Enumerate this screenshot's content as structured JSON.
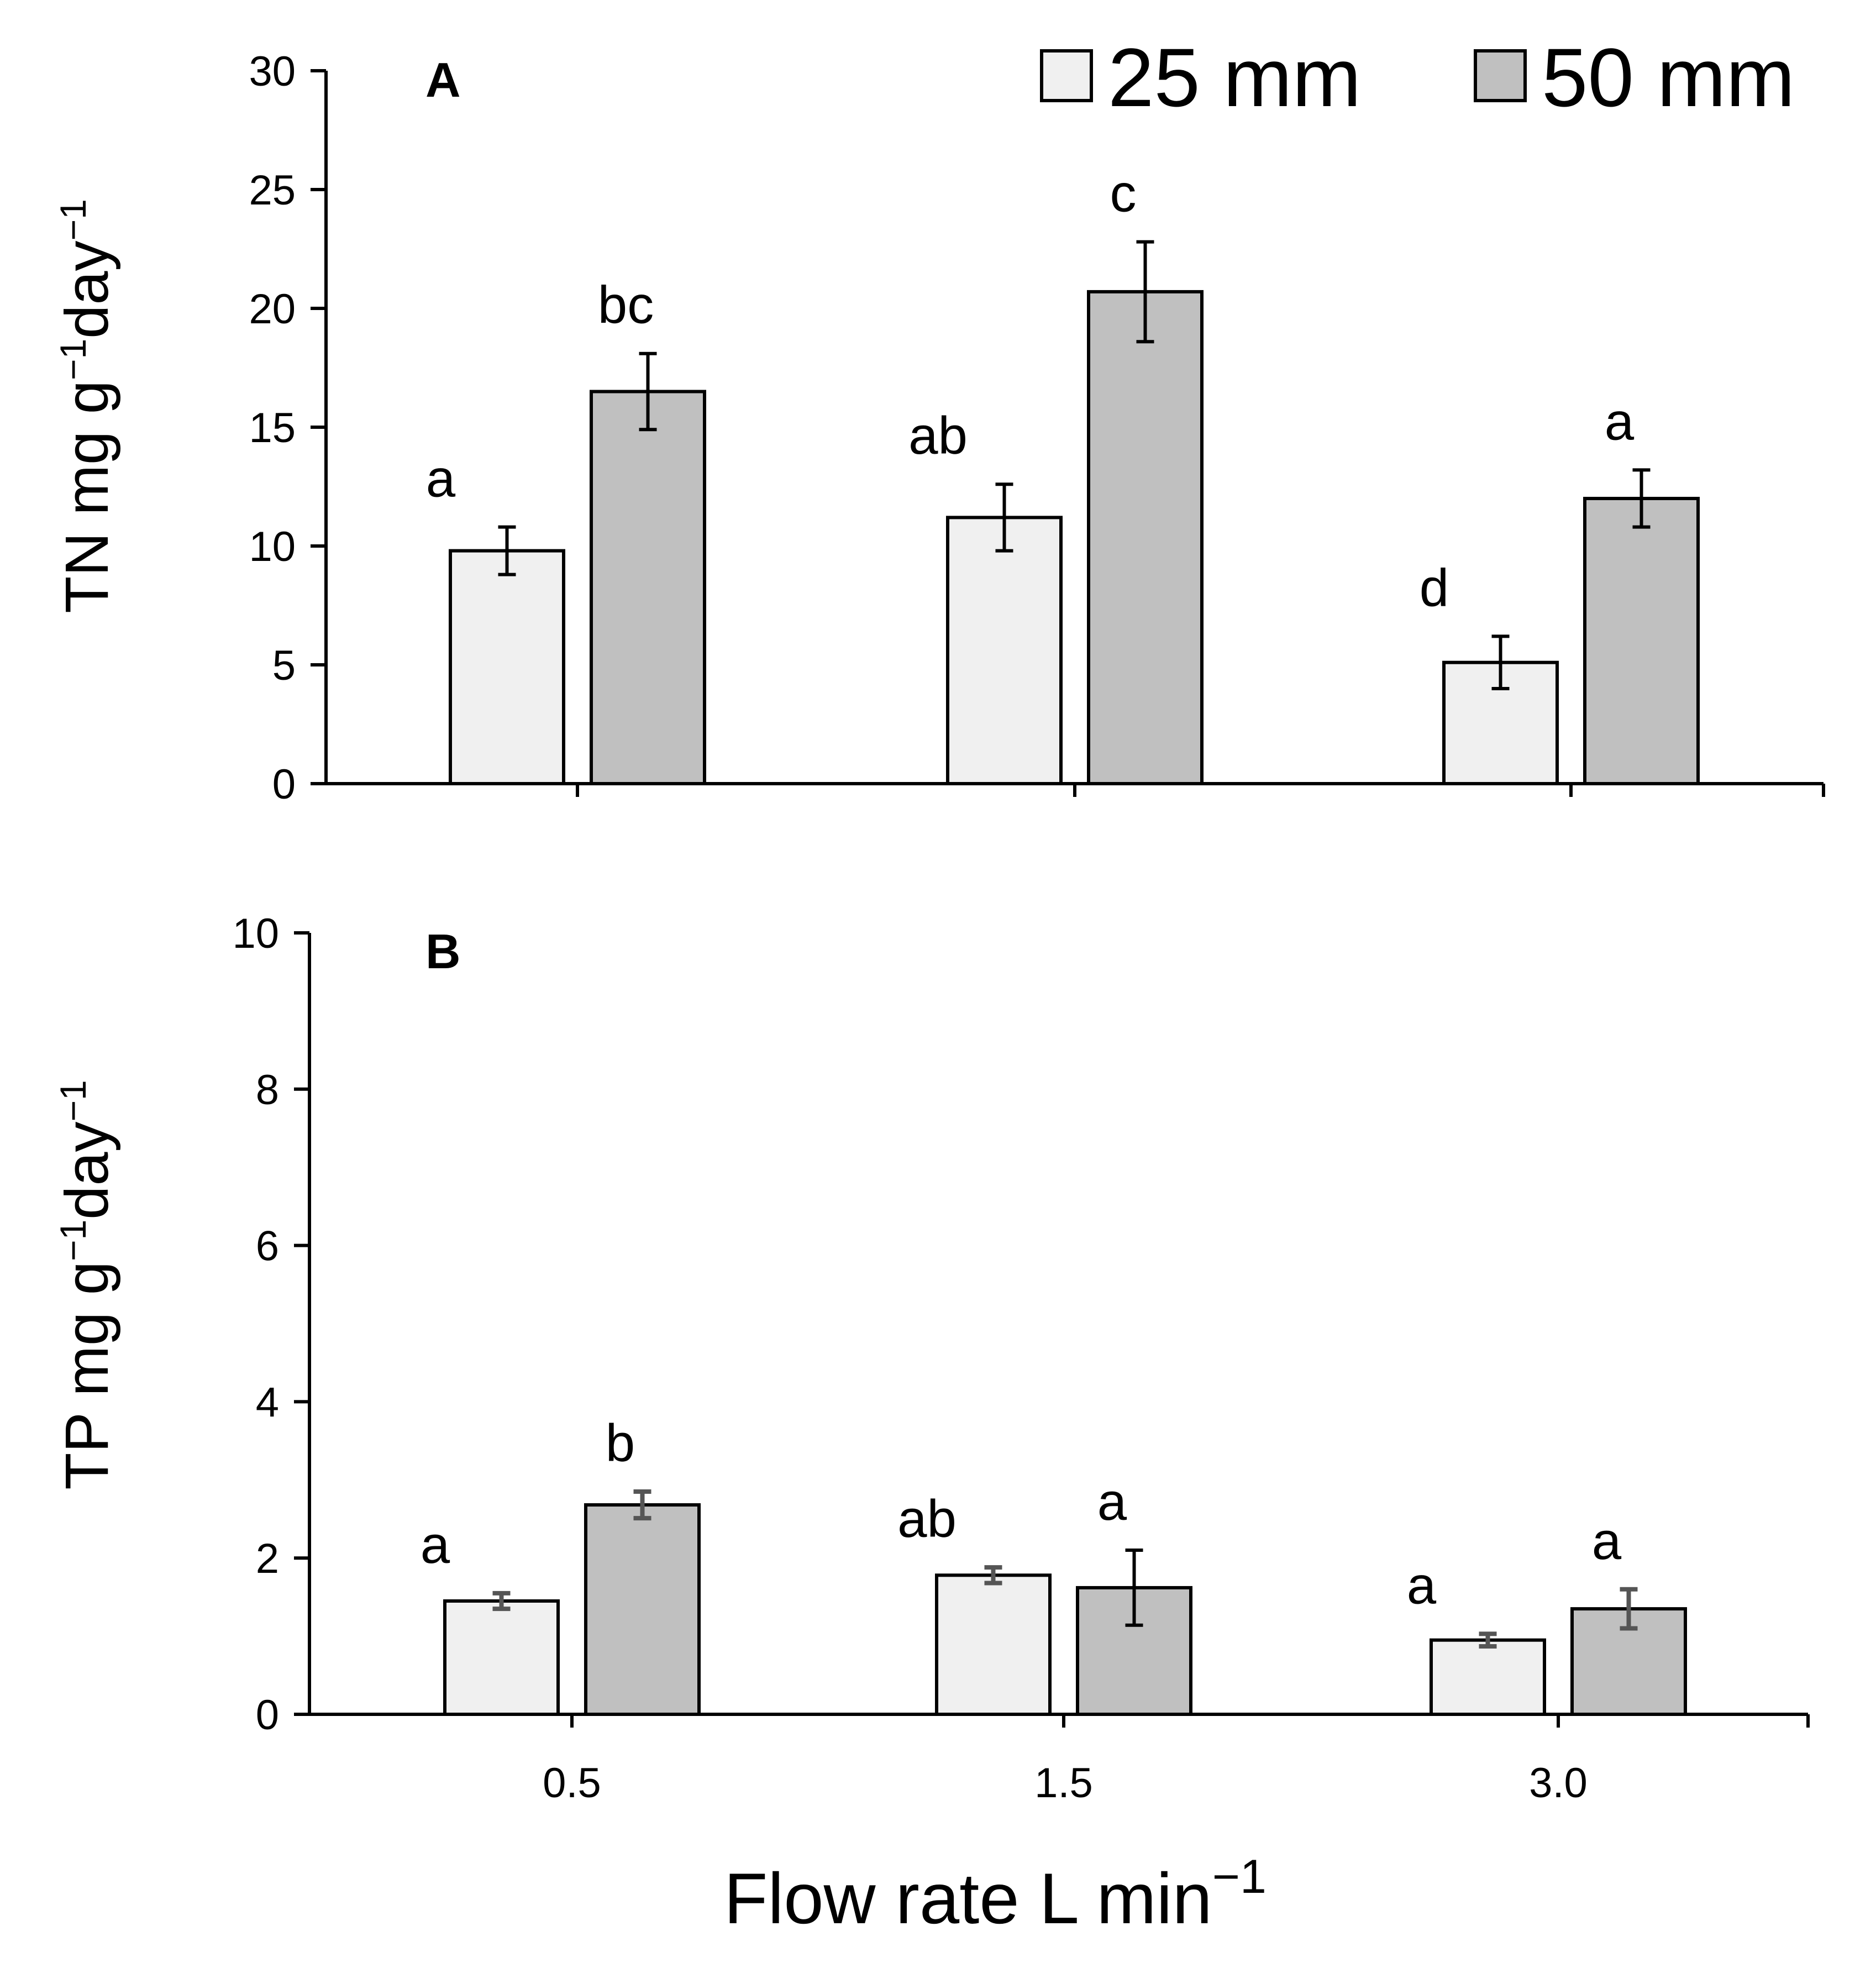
{
  "colors": {
    "series_25": "#f0f0f0",
    "series_50": "#c0c0c0",
    "axis": "#000000"
  },
  "legend": {
    "items": [
      "25 mm",
      "50 mm"
    ]
  },
  "x_axis": {
    "title": "Flow rate L min",
    "title_sup": "−1",
    "categories": [
      "0.5",
      "1.5",
      "3.0"
    ]
  },
  "chart_data": [
    {
      "type": "bar",
      "panel": "A",
      "categories": [
        "0.5",
        "1.5",
        "3.0"
      ],
      "ylabel_parts": [
        "TN mg  g",
        "−1",
        "day",
        "−1"
      ],
      "ylim": [
        0,
        30
      ],
      "yticks": [
        0,
        5,
        10,
        15,
        20,
        25,
        30
      ],
      "series": [
        {
          "name": "25 mm",
          "values": [
            9.8,
            11.2,
            5.1
          ],
          "errors": [
            1.0,
            1.4,
            1.1
          ],
          "letters": [
            "a",
            "ab",
            "d"
          ]
        },
        {
          "name": "50 mm",
          "values": [
            16.5,
            20.7,
            12.0
          ],
          "errors": [
            1.6,
            2.1,
            1.2
          ],
          "letters": [
            "bc",
            "c",
            "a"
          ]
        }
      ]
    },
    {
      "type": "bar",
      "panel": "B",
      "categories": [
        "0.5",
        "1.5",
        "3.0"
      ],
      "ylabel_parts": [
        "TP mg  g",
        "−1",
        "day",
        "−1"
      ],
      "ylim": [
        0,
        10
      ],
      "yticks": [
        0,
        2,
        4,
        6,
        8,
        10
      ],
      "series": [
        {
          "name": "25 mm",
          "values": [
            1.45,
            1.78,
            0.95
          ],
          "errors": [
            0.1,
            0.1,
            0.08
          ],
          "letters": [
            "a",
            "ab",
            "a"
          ]
        },
        {
          "name": "50 mm",
          "values": [
            2.68,
            1.62,
            1.35
          ],
          "errors": [
            0.17,
            0.48,
            0.25
          ],
          "letters": [
            "b",
            "a",
            "a"
          ]
        }
      ]
    }
  ]
}
